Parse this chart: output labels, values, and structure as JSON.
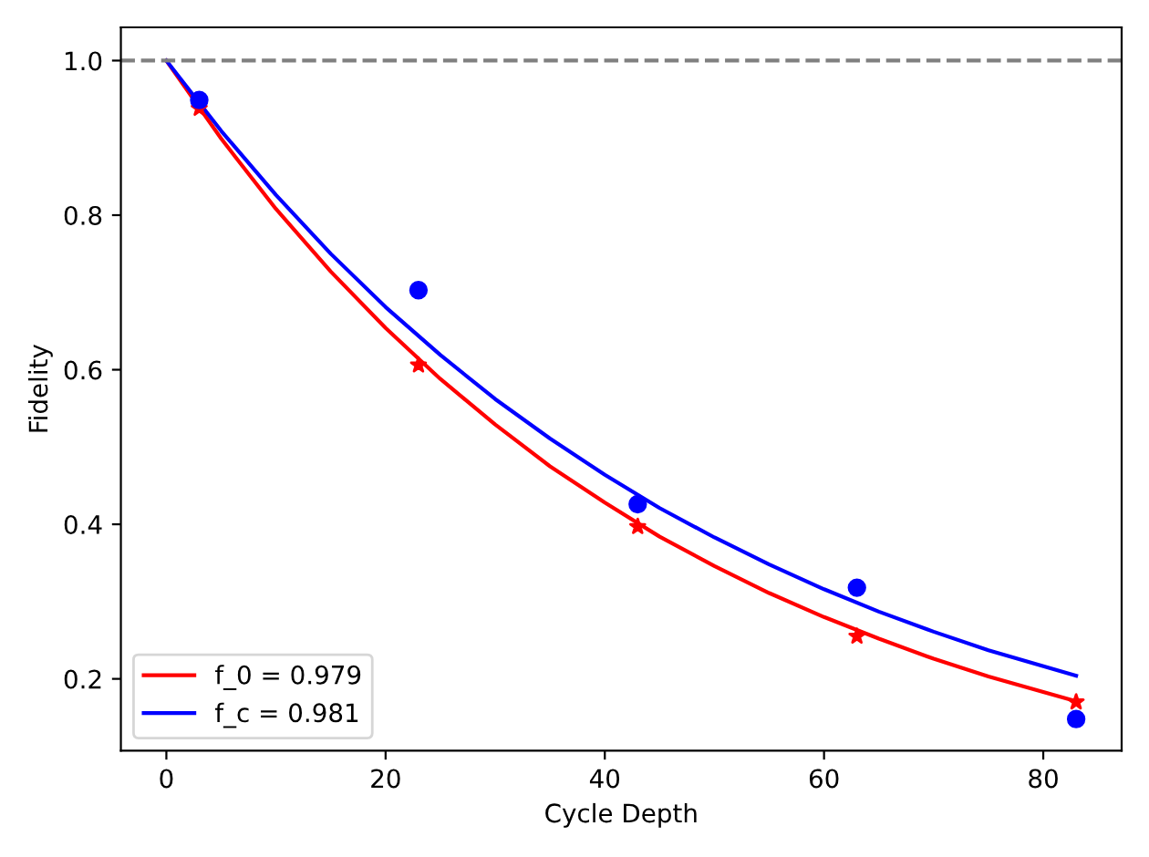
{
  "chart_data": {
    "type": "line",
    "xlabel": "Cycle Depth",
    "ylabel": "Fidelity",
    "series": [
      {
        "name": "f_0 = 0.979",
        "color": "#ff0000",
        "marker": "none",
        "x": [
          0,
          5,
          10,
          15,
          20,
          25,
          30,
          35,
          40,
          45,
          50,
          55,
          60,
          65,
          70,
          75,
          83
        ],
        "values": [
          1.0,
          0.899,
          0.808,
          0.727,
          0.654,
          0.588,
          0.529,
          0.475,
          0.428,
          0.384,
          0.346,
          0.311,
          0.28,
          0.252,
          0.226,
          0.203,
          0.171
        ]
      },
      {
        "name": "f_c = 0.981",
        "color": "#0000ff",
        "marker": "none",
        "x": [
          0,
          5,
          10,
          15,
          20,
          25,
          30,
          35,
          40,
          45,
          50,
          55,
          60,
          65,
          70,
          75,
          83
        ],
        "values": [
          1.0,
          0.909,
          0.826,
          0.75,
          0.681,
          0.619,
          0.562,
          0.511,
          0.464,
          0.421,
          0.383,
          0.348,
          0.316,
          0.287,
          0.261,
          0.237,
          0.204
        ]
      },
      {
        "color": "#ff0000",
        "type": "scatter",
        "marker": "star",
        "x": [
          3,
          23,
          43,
          63,
          83
        ],
        "values": [
          0.938,
          0.606,
          0.397,
          0.255,
          0.17
        ]
      },
      {
        "color": "#0000ff",
        "type": "scatter",
        "marker": "circle",
        "x": [
          3,
          23,
          43,
          63,
          83
        ],
        "values": [
          0.949,
          0.703,
          0.426,
          0.318,
          0.148
        ]
      }
    ],
    "ref_lines": [
      {
        "axis": "y",
        "value": 1.0,
        "color": "#808080",
        "line_style": "dashed"
      }
    ],
    "xlim": [
      -4.15,
      87.15
    ],
    "ylim": [
      0.107,
      1.043
    ],
    "xticks": [
      0,
      20,
      40,
      60,
      80
    ],
    "yticks": [
      0.2,
      0.4,
      0.6,
      0.8,
      {
        "value": 1,
        "label": "1.0"
      }
    ],
    "legend": "bottom left",
    "grid": false
  }
}
